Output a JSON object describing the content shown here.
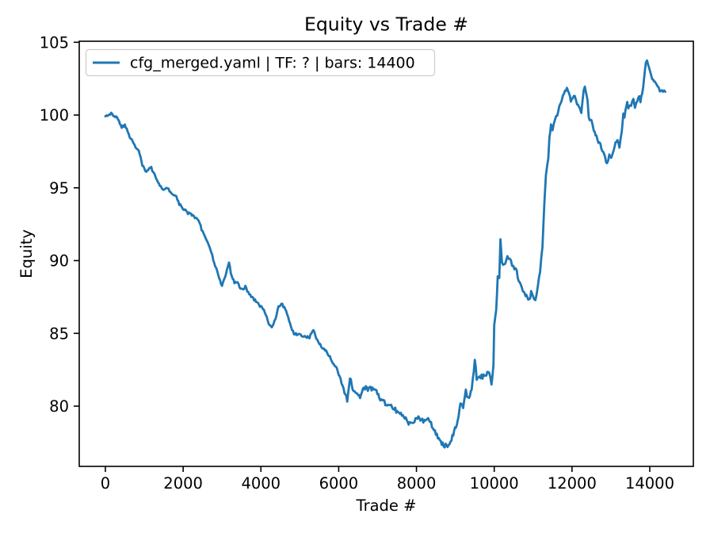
{
  "colors": {
    "line": "#1f77b4",
    "text": "#000000",
    "background": "#ffffff",
    "legend_border": "#cccccc",
    "spine": "#000000"
  },
  "chart_data": {
    "type": "line",
    "title": "Equity vs Trade #",
    "xlabel": "Trade #",
    "ylabel": "Equity",
    "grid": false,
    "legend_position": "upper left",
    "legend_label": "cfg_merged.yaml | TF: ? | bars: 14400",
    "xlim": [
      -672,
      15121
    ],
    "ylim": [
      75.86,
      105.07
    ],
    "xticks": [
      0,
      2000,
      4000,
      6000,
      8000,
      10000,
      12000,
      14000
    ],
    "yticks": [
      80,
      85,
      90,
      95,
      100,
      105
    ],
    "series": [
      {
        "name": "cfg_merged.yaml | TF: ? | bars: 14400",
        "color": "#1f77b4",
        "points": [
          [
            0,
            100.0
          ],
          [
            80,
            100.0
          ],
          [
            150,
            100.1
          ],
          [
            230,
            99.9
          ],
          [
            300,
            99.85
          ],
          [
            350,
            99.6
          ],
          [
            420,
            99.2
          ],
          [
            500,
            99.3
          ],
          [
            600,
            98.7
          ],
          [
            650,
            98.4
          ],
          [
            750,
            97.9
          ],
          [
            860,
            97.5
          ],
          [
            950,
            96.6
          ],
          [
            1030,
            96.1
          ],
          [
            1100,
            96.3
          ],
          [
            1180,
            96.35
          ],
          [
            1260,
            95.9
          ],
          [
            1400,
            95.15
          ],
          [
            1500,
            94.8
          ],
          [
            1600,
            95.0
          ],
          [
            1700,
            94.65
          ],
          [
            1800,
            94.5
          ],
          [
            1900,
            93.9
          ],
          [
            2000,
            93.6
          ],
          [
            2100,
            93.3
          ],
          [
            2200,
            93.2
          ],
          [
            2300,
            93.0
          ],
          [
            2400,
            92.75
          ],
          [
            2500,
            91.95
          ],
          [
            2600,
            91.4
          ],
          [
            2700,
            90.7
          ],
          [
            2800,
            89.9
          ],
          [
            2900,
            89.0
          ],
          [
            3000,
            88.2
          ],
          [
            3100,
            89.1
          ],
          [
            3180,
            89.8
          ],
          [
            3250,
            88.9
          ],
          [
            3320,
            88.5
          ],
          [
            3400,
            88.45
          ],
          [
            3500,
            88.0
          ],
          [
            3600,
            88.2
          ],
          [
            3700,
            87.7
          ],
          [
            3800,
            87.4
          ],
          [
            3900,
            87.1
          ],
          [
            4000,
            86.8
          ],
          [
            4100,
            86.5
          ],
          [
            4200,
            85.7
          ],
          [
            4280,
            85.35
          ],
          [
            4350,
            85.8
          ],
          [
            4450,
            86.8
          ],
          [
            4550,
            87.0
          ],
          [
            4650,
            86.5
          ],
          [
            4750,
            85.6
          ],
          [
            4850,
            85.0
          ],
          [
            4950,
            84.9
          ],
          [
            5050,
            84.85
          ],
          [
            5150,
            84.8
          ],
          [
            5250,
            84.75
          ],
          [
            5350,
            85.2
          ],
          [
            5450,
            84.5
          ],
          [
            5550,
            84.1
          ],
          [
            5650,
            83.9
          ],
          [
            5750,
            83.5
          ],
          [
            5850,
            82.9
          ],
          [
            5950,
            82.6
          ],
          [
            6050,
            81.8
          ],
          [
            6150,
            81.0
          ],
          [
            6220,
            80.4
          ],
          [
            6290,
            82.0
          ],
          [
            6360,
            81.1
          ],
          [
            6450,
            80.8
          ],
          [
            6550,
            80.6
          ],
          [
            6650,
            81.3
          ],
          [
            6750,
            81.15
          ],
          [
            6870,
            81.2
          ],
          [
            6970,
            81.0
          ],
          [
            7070,
            80.4
          ],
          [
            7200,
            80.2
          ],
          [
            7350,
            80.0
          ],
          [
            7480,
            79.7
          ],
          [
            7600,
            79.5
          ],
          [
            7700,
            79.2
          ],
          [
            7800,
            78.8
          ],
          [
            7900,
            78.7
          ],
          [
            7950,
            79.0
          ],
          [
            8050,
            79.25
          ],
          [
            8150,
            79.0
          ],
          [
            8230,
            78.85
          ],
          [
            8300,
            79.15
          ],
          [
            8400,
            78.65
          ],
          [
            8500,
            78.1
          ],
          [
            8600,
            77.6
          ],
          [
            8700,
            77.3
          ],
          [
            8800,
            77.3
          ],
          [
            8900,
            77.7
          ],
          [
            8970,
            78.3
          ],
          [
            9060,
            79.0
          ],
          [
            9130,
            80.3
          ],
          [
            9200,
            80.0
          ],
          [
            9270,
            81.0
          ],
          [
            9330,
            80.5
          ],
          [
            9420,
            81.0
          ],
          [
            9500,
            83.2
          ],
          [
            9550,
            81.9
          ],
          [
            9650,
            82.0
          ],
          [
            9750,
            82.05
          ],
          [
            9870,
            82.3
          ],
          [
            9930,
            81.4
          ],
          [
            9980,
            82.8
          ],
          [
            10000,
            85.5
          ],
          [
            10050,
            86.5
          ],
          [
            10090,
            89.0
          ],
          [
            10130,
            88.8
          ],
          [
            10160,
            91.5
          ],
          [
            10200,
            89.8
          ],
          [
            10280,
            89.9
          ],
          [
            10340,
            90.4
          ],
          [
            10400,
            90.15
          ],
          [
            10460,
            89.6
          ],
          [
            10520,
            89.5
          ],
          [
            10580,
            89.2
          ],
          [
            10650,
            88.4
          ],
          [
            10710,
            88.2
          ],
          [
            10760,
            87.8
          ],
          [
            10850,
            87.55
          ],
          [
            10900,
            87.3
          ],
          [
            10950,
            87.75
          ],
          [
            11010,
            87.4
          ],
          [
            11060,
            87.2
          ],
          [
            11120,
            88.2
          ],
          [
            11180,
            89.3
          ],
          [
            11240,
            91.0
          ],
          [
            11290,
            94.0
          ],
          [
            11330,
            95.9
          ],
          [
            11360,
            96.5
          ],
          [
            11390,
            97.0
          ],
          [
            11420,
            98.4
          ],
          [
            11460,
            99.3
          ],
          [
            11500,
            99.0
          ],
          [
            11560,
            99.7
          ],
          [
            11620,
            100.0
          ],
          [
            11700,
            100.8
          ],
          [
            11770,
            101.3
          ],
          [
            11870,
            101.9
          ],
          [
            11930,
            101.4
          ],
          [
            11970,
            101.0
          ],
          [
            12070,
            101.3
          ],
          [
            12130,
            100.8
          ],
          [
            12200,
            100.5
          ],
          [
            12240,
            100.2
          ],
          [
            12300,
            101.7
          ],
          [
            12330,
            101.9
          ],
          [
            12400,
            101.0
          ],
          [
            12430,
            99.8
          ],
          [
            12500,
            99.6
          ],
          [
            12560,
            98.9
          ],
          [
            12630,
            98.5
          ],
          [
            12680,
            98.1
          ],
          [
            12730,
            98.0
          ],
          [
            12780,
            97.5
          ],
          [
            12830,
            97.3
          ],
          [
            12900,
            96.6
          ],
          [
            12960,
            97.3
          ],
          [
            13010,
            97.0
          ],
          [
            13070,
            97.6
          ],
          [
            13120,
            98.1
          ],
          [
            13170,
            98.2
          ],
          [
            13220,
            97.8
          ],
          [
            13280,
            98.9
          ],
          [
            13320,
            100.1
          ],
          [
            13350,
            99.9
          ],
          [
            13420,
            100.9
          ],
          [
            13450,
            100.5
          ],
          [
            13520,
            100.7
          ],
          [
            13580,
            101.1
          ],
          [
            13620,
            100.5
          ],
          [
            13680,
            101.0
          ],
          [
            13730,
            101.3
          ],
          [
            13760,
            100.9
          ],
          [
            13830,
            101.9
          ],
          [
            13860,
            102.6
          ],
          [
            13900,
            103.6
          ],
          [
            13930,
            103.75
          ],
          [
            13960,
            103.4
          ],
          [
            14000,
            103.0
          ],
          [
            14060,
            102.5
          ],
          [
            14130,
            102.3
          ],
          [
            14200,
            102.0
          ],
          [
            14260,
            101.7
          ],
          [
            14340,
            101.6
          ],
          [
            14400,
            101.6
          ]
        ]
      }
    ]
  }
}
